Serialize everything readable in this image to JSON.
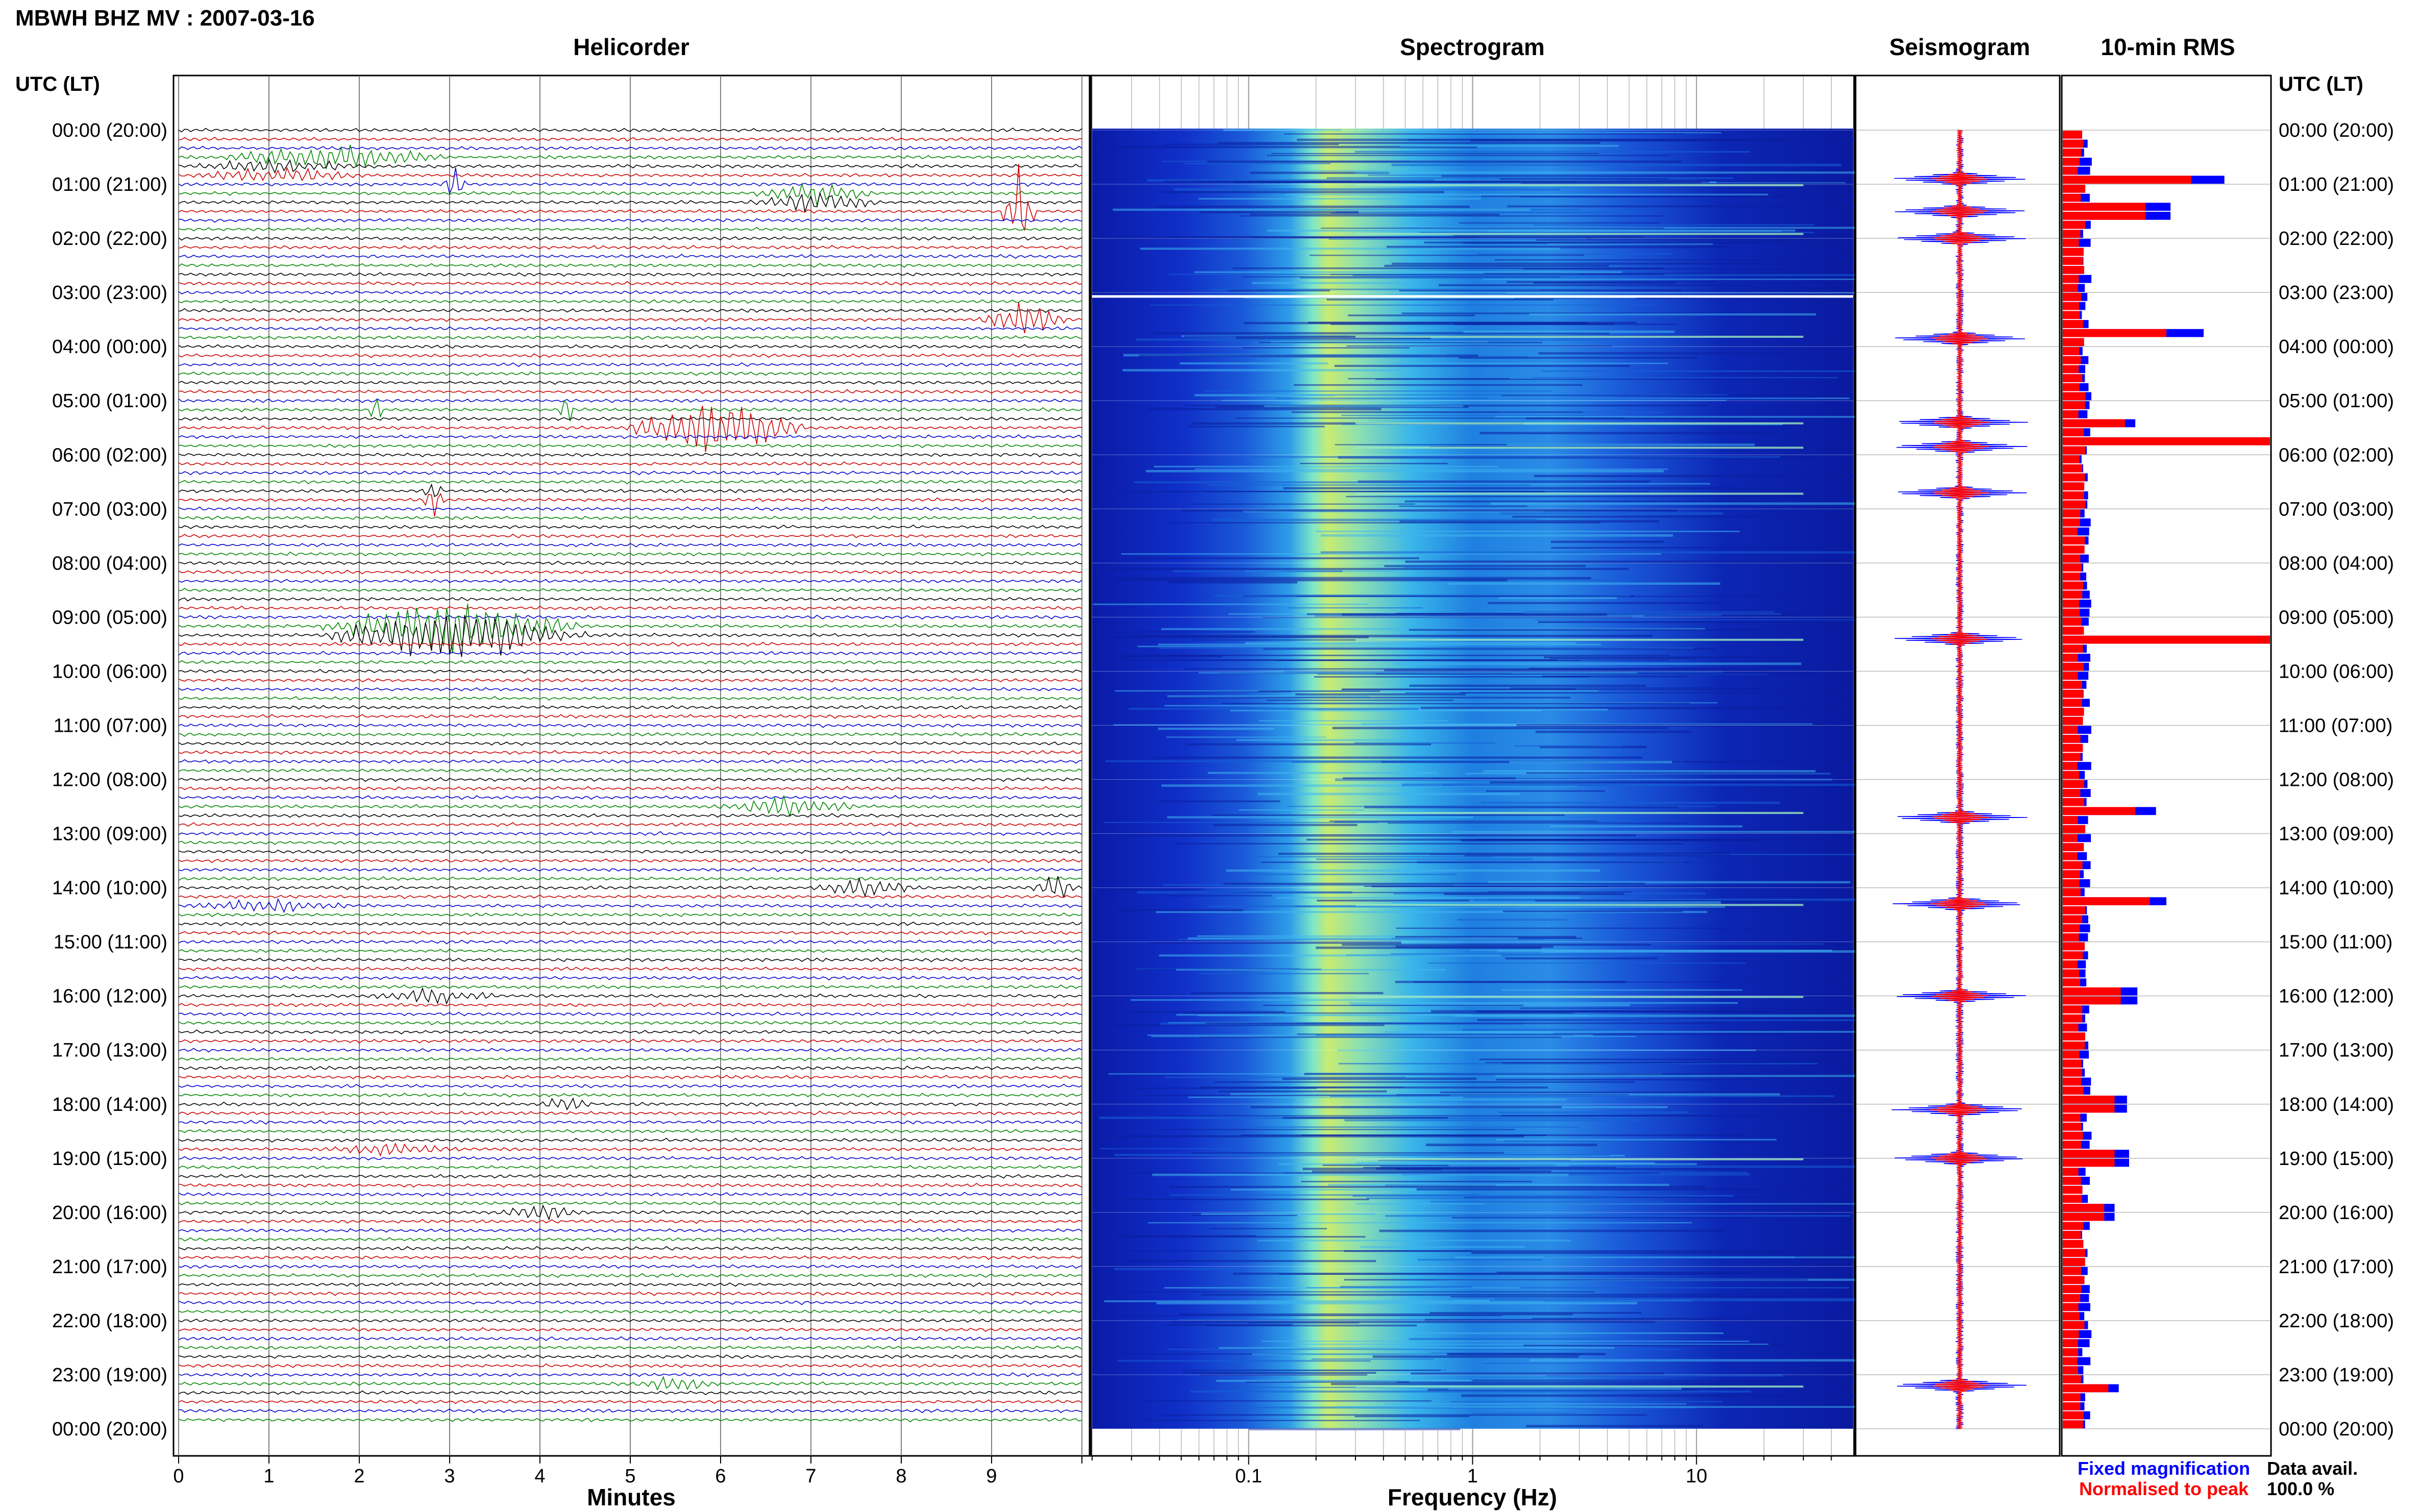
{
  "header": {
    "title": "MBWH BHZ MV : 2007-03-16",
    "utc_lt_label": "UTC (LT)"
  },
  "panels": {
    "helicorder_title": "Helicorder",
    "spectrogram_title": "Spectrogram",
    "seismogram_title": "Seismogram",
    "rms_title": "10-min RMS"
  },
  "axes": {
    "minutes_label": "Minutes",
    "frequency_label": "Frequency (Hz)",
    "minute_ticks": [
      "0",
      "1",
      "2",
      "3",
      "4",
      "5",
      "6",
      "7",
      "8",
      "9"
    ],
    "frequency_ticks": [
      "0.1",
      "1",
      "10"
    ]
  },
  "time_labels": [
    "00:00 (20:00)",
    "01:00 (21:00)",
    "02:00 (22:00)",
    "03:00 (23:00)",
    "04:00 (00:00)",
    "05:00 (01:00)",
    "06:00 (02:00)",
    "07:00 (03:00)",
    "08:00 (04:00)",
    "09:00 (05:00)",
    "10:00 (06:00)",
    "11:00 (07:00)",
    "12:00 (08:00)",
    "13:00 (09:00)",
    "14:00 (10:00)",
    "15:00 (11:00)",
    "16:00 (12:00)",
    "17:00 (13:00)",
    "18:00 (14:00)",
    "19:00 (15:00)",
    "20:00 (16:00)",
    "21:00 (17:00)",
    "22:00 (18:00)",
    "23:00 (19:00)",
    "00:00 (20:00)"
  ],
  "legend": {
    "fixed_label": "Fixed magnification",
    "normalised_label": "Normalised to peak",
    "data_avail_label": "Data avail.",
    "data_avail_value": "100.0 %"
  },
  "colors": {
    "trace_cycle": [
      "#000000",
      "#cc0000",
      "#0000cc",
      "#008800"
    ],
    "fixed_magnification": "#0000ff",
    "normalised_to_peak": "#ff0000"
  },
  "chart_data": [
    {
      "type": "line",
      "name": "helicorder",
      "title": "Helicorder",
      "xlabel": "Minutes",
      "xlim": [
        0,
        10
      ],
      "rows": 144,
      "events": [
        {
          "hour": 0.55,
          "minute_start": 0.4,
          "minute_end": 3.0,
          "amplitude": 0.8
        },
        {
          "hour": 0.75,
          "minute_start": 0.1,
          "minute_end": 2.1,
          "amplitude": 0.5
        },
        {
          "hour": 1.0,
          "minute_start": 2.9,
          "minute_end": 3.2,
          "amplitude": 1.2
        },
        {
          "hour": 1.25,
          "minute_start": 6.3,
          "minute_end": 7.8,
          "amplitude": 0.7
        },
        {
          "hour": 1.55,
          "minute_start": 9.1,
          "minute_end": 9.5,
          "amplitude": 3.0
        },
        {
          "hour": 3.55,
          "minute_start": 8.8,
          "minute_end": 9.9,
          "amplitude": 1.3
        },
        {
          "hour": 5.2,
          "minute_start": 2.1,
          "minute_end": 2.3,
          "amplitude": 1.0
        },
        {
          "hour": 5.2,
          "minute_start": 4.2,
          "minute_end": 4.4,
          "amplitude": 1.0
        },
        {
          "hour": 5.55,
          "minute_start": 4.9,
          "minute_end": 7.0,
          "amplitude": 2.0
        },
        {
          "hour": 6.75,
          "minute_start": 2.7,
          "minute_end": 2.95,
          "amplitude": 1.0
        },
        {
          "hour": 9.25,
          "minute_start": 1.5,
          "minute_end": 4.6,
          "amplitude": 1.8
        },
        {
          "hour": 12.55,
          "minute_start": 5.8,
          "minute_end": 7.6,
          "amplitude": 0.6
        },
        {
          "hour": 14.0,
          "minute_start": 7.0,
          "minute_end": 8.3,
          "amplitude": 0.6
        },
        {
          "hour": 14.05,
          "minute_start": 9.4,
          "minute_end": 10.0,
          "amplitude": 0.8
        },
        {
          "hour": 14.3,
          "minute_start": 0.0,
          "minute_end": 2.0,
          "amplitude": 0.4
        },
        {
          "hour": 16.0,
          "minute_start": 2.0,
          "minute_end": 3.6,
          "amplitude": 0.5
        },
        {
          "hour": 18.0,
          "minute_start": 4.0,
          "minute_end": 4.6,
          "amplitude": 0.6
        },
        {
          "hour": 18.8,
          "minute_start": 1.5,
          "minute_end": 3.2,
          "amplitude": 0.4
        },
        {
          "hour": 19.95,
          "minute_start": 3.5,
          "minute_end": 4.5,
          "amplitude": 0.5
        },
        {
          "hour": 23.1,
          "minute_start": 5.0,
          "minute_end": 6.0,
          "amplitude": 0.5
        }
      ]
    },
    {
      "type": "heatmap",
      "name": "spectrogram",
      "title": "Spectrogram",
      "xlabel": "Frequency (Hz)",
      "x_scale": "log",
      "xlim": [
        0.02,
        50
      ],
      "x_ticks": [
        0.1,
        1,
        10
      ],
      "peak_frequency_hz": 0.3,
      "colormap": "jet"
    },
    {
      "type": "line",
      "name": "seismogram",
      "title": "Seismogram",
      "spikes_hour": [
        0.9,
        1.5,
        2.0,
        3.85,
        5.4,
        5.85,
        6.7,
        9.4,
        12.7,
        14.3,
        16.0,
        18.1,
        19.0,
        23.2
      ]
    },
    {
      "type": "bar",
      "name": "rms",
      "title": "10-min RMS",
      "orientation": "horizontal",
      "series": [
        {
          "name": "Fixed magnification",
          "color": "#0000ff"
        },
        {
          "name": "Normalised to peak",
          "color": "#ff0000"
        }
      ],
      "bins_per_hour": 6,
      "peaks": [
        {
          "hour": 0.9,
          "fixed": 0.78,
          "normalised": 0.62
        },
        {
          "hour": 1.5,
          "fixed": 0.52,
          "normalised": 0.4
        },
        {
          "hour": 3.8,
          "fixed": 0.68,
          "normalised": 0.5
        },
        {
          "hour": 5.4,
          "fixed": 0.35,
          "normalised": 0.3
        },
        {
          "hour": 5.75,
          "fixed": 1.0,
          "normalised": 1.0
        },
        {
          "hour": 9.4,
          "fixed": 1.0,
          "normalised": 1.0
        },
        {
          "hour": 12.6,
          "fixed": 0.45,
          "normalised": 0.35
        },
        {
          "hour": 14.2,
          "fixed": 0.5,
          "normalised": 0.42
        },
        {
          "hour": 16.0,
          "fixed": 0.36,
          "normalised": 0.28
        },
        {
          "hour": 18.0,
          "fixed": 0.31,
          "normalised": 0.25
        },
        {
          "hour": 19.0,
          "fixed": 0.32,
          "normalised": 0.25
        },
        {
          "hour": 20.0,
          "fixed": 0.25,
          "normalised": 0.2
        },
        {
          "hour": 23.2,
          "fixed": 0.27,
          "normalised": 0.22
        }
      ]
    }
  ]
}
